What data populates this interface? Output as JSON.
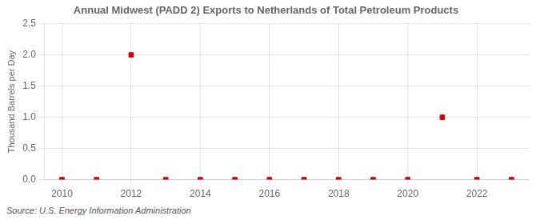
{
  "chart_data": {
    "type": "scatter",
    "title": "Annual Midwest (PADD 2) Exports to Netherlands of Total Petroleum Products",
    "ylabel": "Thousand Barrels per Day",
    "annotations": [
      "Source: U.S. Energy Information Administration"
    ],
    "x": [
      2010,
      2011,
      2012,
      2013,
      2014,
      2015,
      2016,
      2017,
      2018,
      2019,
      2020,
      2021,
      2022,
      2023
    ],
    "values": [
      0,
      0,
      2.0,
      0,
      0,
      0,
      0,
      0,
      0,
      0,
      0,
      1.0,
      0,
      0
    ],
    "color": "#cc0000",
    "marker": "square",
    "xlim": [
      2009.5,
      2023.5
    ],
    "xticks": [
      2010,
      2012,
      2014,
      2016,
      2018,
      2020,
      2022
    ],
    "ylim": [
      0.0,
      2.5
    ],
    "yticks": [
      {
        "value": 0,
        "label": "0.0"
      },
      0.5,
      {
        "value": 1,
        "label": "1.0"
      },
      1.5,
      {
        "value": 2,
        "label": "2.0"
      },
      2.5
    ],
    "grid": true
  }
}
